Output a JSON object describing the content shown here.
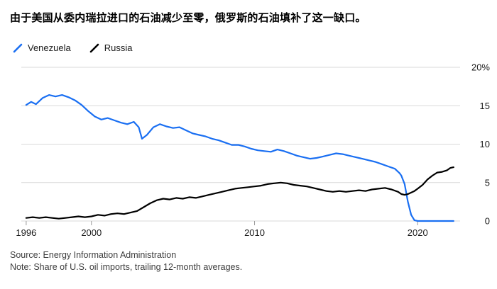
{
  "title": "由于美国从委内瑞拉进口的石油减少至零，俄罗斯的石油填补了这一缺口。",
  "footer": {
    "source": "Source: Energy Information Administration",
    "note": "Note: Share of U.S. oil imports, trailing 12-month averages."
  },
  "colors": {
    "venezuela": "#1a6ff2",
    "russia": "#000000",
    "gridline": "#d9d9d9",
    "tick": "#999999",
    "axis_text": "#1a1a1a"
  },
  "chart_data": {
    "type": "line",
    "title": "由于美国从委内瑞拉进口的石油减少至零，俄罗斯的石油填补了这一缺口。",
    "xlabel": "",
    "ylabel": "Share of U.S. oil imports, trailing 12-month averages (%)",
    "xlim": [
      1995.7,
      2022.6
    ],
    "ylim": [
      0,
      20
    ],
    "grid": true,
    "legend_position": "top-left",
    "yticks": [
      {
        "value": 20,
        "label": "20%"
      },
      {
        "value": 15,
        "label": "15"
      },
      {
        "value": 10,
        "label": "10"
      },
      {
        "value": 5,
        "label": "5"
      },
      {
        "value": 0,
        "label": "0"
      }
    ],
    "xticks": [
      {
        "value": 1996,
        "label": "1996"
      },
      {
        "value": 2000,
        "label": "2000"
      },
      {
        "value": 2010,
        "label": "2010"
      },
      {
        "value": 2020,
        "label": "2020"
      }
    ],
    "series": [
      {
        "name": "Venezuela",
        "color": "#1a6ff2",
        "points": [
          [
            1996.0,
            15.1
          ],
          [
            1996.3,
            15.5
          ],
          [
            1996.6,
            15.2
          ],
          [
            1997.0,
            16.0
          ],
          [
            1997.4,
            16.4
          ],
          [
            1997.8,
            16.2
          ],
          [
            1998.2,
            16.4
          ],
          [
            1998.6,
            16.1
          ],
          [
            1999.0,
            15.7
          ],
          [
            1999.4,
            15.1
          ],
          [
            1999.8,
            14.3
          ],
          [
            2000.2,
            13.6
          ],
          [
            2000.6,
            13.2
          ],
          [
            2001.0,
            13.4
          ],
          [
            2001.4,
            13.1
          ],
          [
            2001.8,
            12.8
          ],
          [
            2002.2,
            12.6
          ],
          [
            2002.6,
            12.9
          ],
          [
            2002.9,
            12.2
          ],
          [
            2003.1,
            10.7
          ],
          [
            2003.4,
            11.2
          ],
          [
            2003.8,
            12.2
          ],
          [
            2004.2,
            12.6
          ],
          [
            2004.6,
            12.3
          ],
          [
            2005.0,
            12.1
          ],
          [
            2005.4,
            12.2
          ],
          [
            2005.8,
            11.8
          ],
          [
            2006.2,
            11.4
          ],
          [
            2006.6,
            11.2
          ],
          [
            2007.0,
            11.0
          ],
          [
            2007.4,
            10.7
          ],
          [
            2007.8,
            10.5
          ],
          [
            2008.2,
            10.2
          ],
          [
            2008.6,
            9.9
          ],
          [
            2009.0,
            9.9
          ],
          [
            2009.4,
            9.7
          ],
          [
            2009.8,
            9.4
          ],
          [
            2010.2,
            9.2
          ],
          [
            2010.6,
            9.1
          ],
          [
            2011.0,
            9.0
          ],
          [
            2011.4,
            9.3
          ],
          [
            2011.8,
            9.1
          ],
          [
            2012.2,
            8.8
          ],
          [
            2012.6,
            8.5
          ],
          [
            2013.0,
            8.3
          ],
          [
            2013.4,
            8.1
          ],
          [
            2013.8,
            8.2
          ],
          [
            2014.2,
            8.4
          ],
          [
            2014.6,
            8.6
          ],
          [
            2015.0,
            8.8
          ],
          [
            2015.4,
            8.7
          ],
          [
            2015.8,
            8.5
          ],
          [
            2016.2,
            8.3
          ],
          [
            2016.6,
            8.1
          ],
          [
            2017.0,
            7.9
          ],
          [
            2017.4,
            7.7
          ],
          [
            2017.8,
            7.4
          ],
          [
            2018.2,
            7.1
          ],
          [
            2018.6,
            6.8
          ],
          [
            2018.9,
            6.2
          ],
          [
            2019.0,
            5.9
          ],
          [
            2019.2,
            4.8
          ],
          [
            2019.4,
            2.5
          ],
          [
            2019.6,
            0.8
          ],
          [
            2019.8,
            0.1
          ],
          [
            2020.0,
            0.0
          ],
          [
            2020.5,
            0.0
          ],
          [
            2021.0,
            0.0
          ],
          [
            2021.5,
            0.0
          ],
          [
            2022.0,
            0.0
          ],
          [
            2022.2,
            0.0
          ]
        ]
      },
      {
        "name": "Russia",
        "color": "#000000",
        "points": [
          [
            1996.0,
            0.4
          ],
          [
            1996.4,
            0.5
          ],
          [
            1996.8,
            0.4
          ],
          [
            1997.2,
            0.5
          ],
          [
            1997.6,
            0.4
          ],
          [
            1998.0,
            0.3
          ],
          [
            1998.4,
            0.4
          ],
          [
            1998.8,
            0.5
          ],
          [
            1999.2,
            0.6
          ],
          [
            1999.6,
            0.5
          ],
          [
            2000.0,
            0.6
          ],
          [
            2000.4,
            0.8
          ],
          [
            2000.8,
            0.7
          ],
          [
            2001.2,
            0.9
          ],
          [
            2001.6,
            1.0
          ],
          [
            2002.0,
            0.9
          ],
          [
            2002.4,
            1.1
          ],
          [
            2002.8,
            1.3
          ],
          [
            2003.2,
            1.8
          ],
          [
            2003.6,
            2.3
          ],
          [
            2004.0,
            2.7
          ],
          [
            2004.4,
            2.9
          ],
          [
            2004.8,
            2.8
          ],
          [
            2005.2,
            3.0
          ],
          [
            2005.6,
            2.9
          ],
          [
            2006.0,
            3.1
          ],
          [
            2006.4,
            3.0
          ],
          [
            2006.8,
            3.2
          ],
          [
            2007.2,
            3.4
          ],
          [
            2007.6,
            3.6
          ],
          [
            2008.0,
            3.8
          ],
          [
            2008.4,
            4.0
          ],
          [
            2008.8,
            4.2
          ],
          [
            2009.2,
            4.3
          ],
          [
            2009.6,
            4.4
          ],
          [
            2010.0,
            4.5
          ],
          [
            2010.4,
            4.6
          ],
          [
            2010.8,
            4.8
          ],
          [
            2011.2,
            4.9
          ],
          [
            2011.6,
            5.0
          ],
          [
            2012.0,
            4.9
          ],
          [
            2012.4,
            4.7
          ],
          [
            2012.8,
            4.6
          ],
          [
            2013.2,
            4.5
          ],
          [
            2013.6,
            4.3
          ],
          [
            2014.0,
            4.1
          ],
          [
            2014.4,
            3.9
          ],
          [
            2014.8,
            3.8
          ],
          [
            2015.2,
            3.9
          ],
          [
            2015.6,
            3.8
          ],
          [
            2016.0,
            3.9
          ],
          [
            2016.4,
            4.0
          ],
          [
            2016.8,
            3.9
          ],
          [
            2017.2,
            4.1
          ],
          [
            2017.6,
            4.2
          ],
          [
            2018.0,
            4.3
          ],
          [
            2018.4,
            4.1
          ],
          [
            2018.8,
            3.8
          ],
          [
            2019.0,
            3.5
          ],
          [
            2019.2,
            3.4
          ],
          [
            2019.4,
            3.5
          ],
          [
            2019.6,
            3.7
          ],
          [
            2019.8,
            3.9
          ],
          [
            2020.0,
            4.2
          ],
          [
            2020.3,
            4.7
          ],
          [
            2020.6,
            5.4
          ],
          [
            2020.9,
            5.9
          ],
          [
            2021.2,
            6.3
          ],
          [
            2021.5,
            6.4
          ],
          [
            2021.8,
            6.6
          ],
          [
            2022.0,
            6.9
          ],
          [
            2022.2,
            7.0
          ]
        ]
      }
    ]
  }
}
